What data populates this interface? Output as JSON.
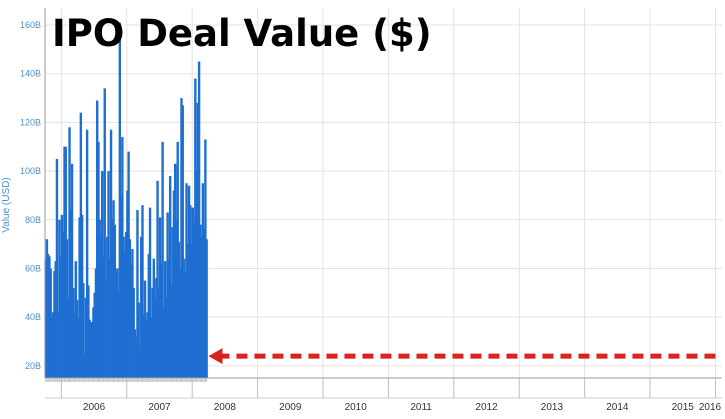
{
  "chart_data": {
    "type": "bar",
    "title": "IPO Deal Value ($)",
    "ylabel": "Value (USD)",
    "xlabel": "",
    "ylim": [
      15,
      167
    ],
    "xlim": [
      2005.75,
      2016.1
    ],
    "y_ticks": [
      20,
      40,
      60,
      80,
      100,
      120,
      140,
      160
    ],
    "y_tick_labels": [
      "20B",
      "40B",
      "60B",
      "80B",
      "100B",
      "120B",
      "140B",
      "160B"
    ],
    "year_labels": [
      "2006",
      "2007",
      "2008",
      "2009",
      "2010",
      "2011",
      "2012",
      "2013",
      "2014",
      "2015",
      "2016"
    ],
    "grid": true,
    "legend": "none",
    "series": [
      {
        "x_start": 2005.75,
        "interval_weeks": 1,
        "color": "#1f6fd1",
        "values": [
          64,
          72,
          66,
          65,
          60,
          40,
          42,
          59,
          63,
          105,
          42,
          80,
          65,
          82,
          75,
          110,
          110,
          72,
          48,
          118,
          84,
          103,
          52,
          42,
          63,
          47,
          40,
          81,
          124,
          82,
          54,
          25,
          48,
          117,
          53,
          39,
          38,
          38,
          44,
          50,
          60,
          129,
          112,
          80,
          73,
          100,
          65,
          134,
          55,
          73,
          100,
          64,
          117,
          80,
          88,
          78,
          58,
          60,
          51,
          161,
          90,
          114,
          73,
          67,
          75,
          92,
          108,
          72,
          62,
          68,
          52,
          35,
          32,
          84,
          46,
          28,
          73,
          86,
          41,
          55,
          39,
          42,
          66,
          85,
          40,
          52,
          64,
          48,
          56,
          96,
          52,
          81,
          62,
          112,
          44,
          63,
          48,
          83,
          64,
          98,
          53,
          77,
          92,
          103,
          80,
          112,
          71,
          60,
          130,
          127,
          64,
          59,
          95,
          70,
          94,
          86,
          70,
          85,
          79,
          138,
          100,
          128,
          145,
          78,
          73,
          95,
          76,
          113,
          72
        ]
      }
    ]
  },
  "annotation": {
    "arrow_color": "#d8231f",
    "arrow_level": 24,
    "arrow_from": 2016.0,
    "arrow_to": 2008.25
  }
}
